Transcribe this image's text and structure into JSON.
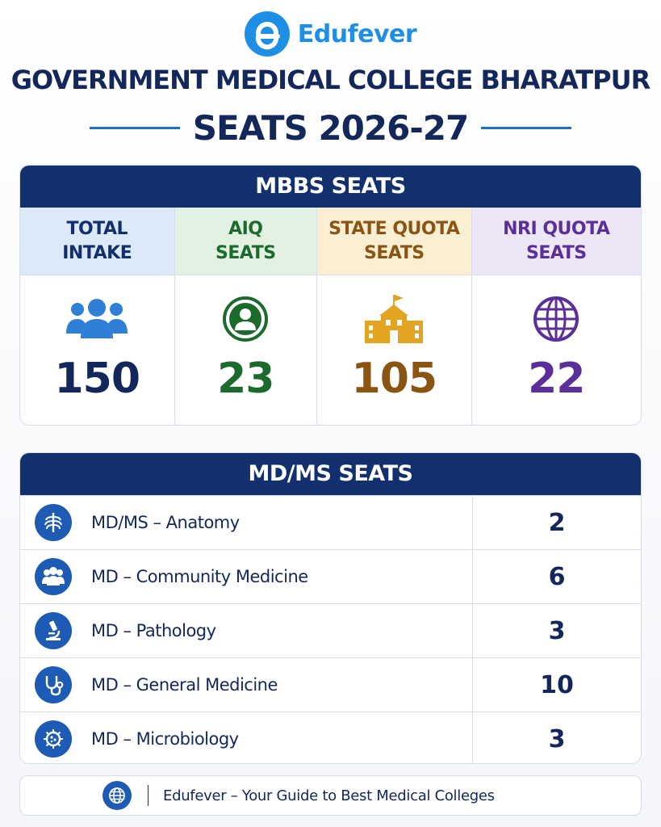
{
  "brand": {
    "name": "Edufever",
    "icon": "edufever-logo-icon",
    "color": "#1f8fe6"
  },
  "title": "GOVERNMENT MEDICAL COLLEGE BHARATPUR",
  "subtitle": "SEATS 2026-27",
  "mbbs": {
    "heading": "MBBS SEATS",
    "columns": [
      {
        "line1": "TOTAL",
        "line2": "INTAKE",
        "value": "150",
        "icon": "users-group-icon",
        "color": "#2f7fd6"
      },
      {
        "line1": "AIQ",
        "line2": "SEATS",
        "value": "23",
        "icon": "user-circle-icon",
        "color": "#1c6b2c"
      },
      {
        "line1": "STATE QUOTA",
        "line2": "SEATS",
        "value": "105",
        "icon": "school-building-icon",
        "color": "#e3a422"
      },
      {
        "line1": "NRI QUOTA",
        "line2": "SEATS",
        "value": "22",
        "icon": "globe-icon",
        "color": "#5a2f9a"
      }
    ]
  },
  "mdms": {
    "heading": "MD/MS SEATS",
    "rows": [
      {
        "label": "MD/MS – Anatomy",
        "value": "2",
        "icon": "ribcage-icon"
      },
      {
        "label": "MD – Community Medicine",
        "value": "6",
        "icon": "community-group-icon"
      },
      {
        "label": "MD – Pathology",
        "value": "3",
        "icon": "microscope-icon"
      },
      {
        "label": "MD – General Medicine",
        "value": "10",
        "icon": "stethoscope-icon"
      },
      {
        "label": "MD – Microbiology",
        "value": "3",
        "icon": "microbe-icon"
      }
    ]
  },
  "footer": {
    "text": "Edufever – Your Guide to Best Medical Colleges",
    "icon": "globe-icon"
  },
  "colors": {
    "navy": "#13306e",
    "text": "#13275a",
    "accent": "#1e5bb4"
  }
}
